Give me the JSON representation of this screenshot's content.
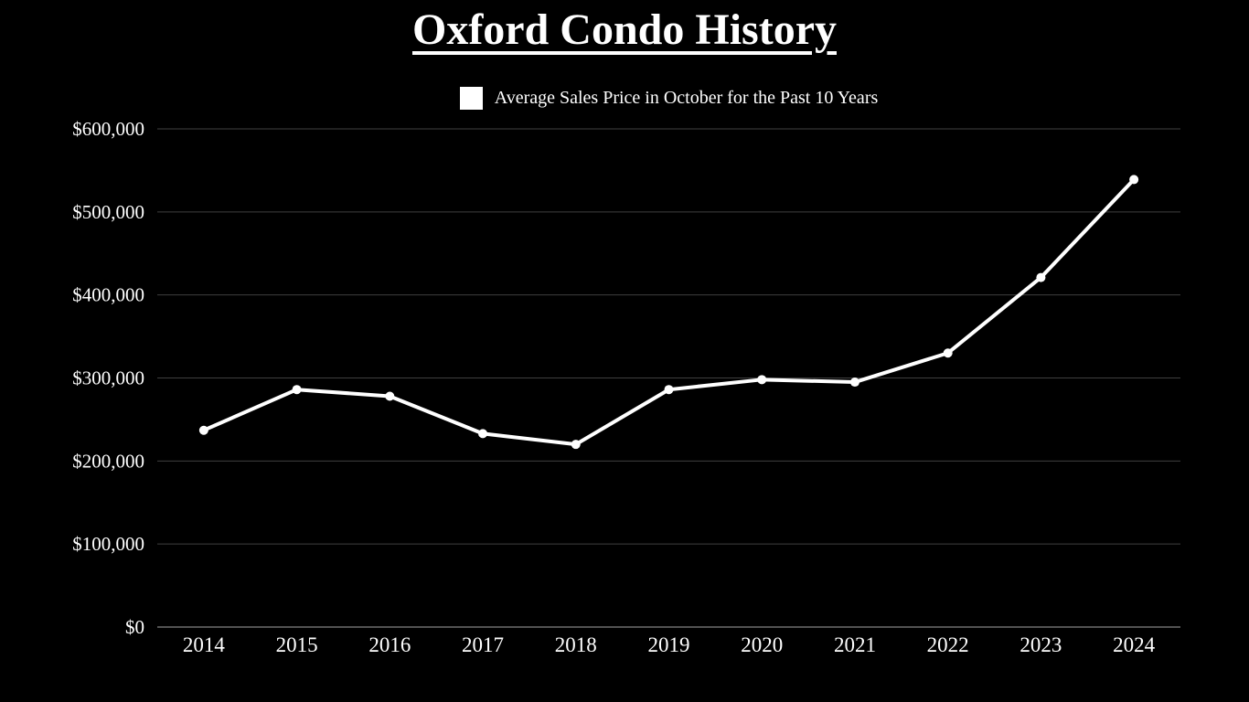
{
  "title": {
    "text": "Oxford Condo History"
  },
  "legend": {
    "label": "Average Sales Price in October for the Past 10 Years"
  },
  "chart_data": {
    "type": "line",
    "title": "Oxford Condo History",
    "x": [
      "2014",
      "2015",
      "2016",
      "2017",
      "2018",
      "2019",
      "2020",
      "2021",
      "2022",
      "2023",
      "2024"
    ],
    "series": [
      {
        "name": "Average Sales Price in October for the Past 10 Years",
        "color": "#ffffff",
        "values": [
          237000,
          286000,
          278000,
          233000,
          220000,
          286000,
          298000,
          295000,
          330000,
          421000,
          539000
        ]
      }
    ],
    "ylim": [
      0,
      600000
    ],
    "y_tick_step": 100000,
    "y_tick_labels": [
      "$0",
      "$100,000",
      "$200,000",
      "$300,000",
      "$400,000",
      "$500,000",
      "$600,000"
    ],
    "grid": true,
    "grid_color": "#3f3f3f",
    "axis_color": "#6e6e6e",
    "background": "#000000",
    "legend_position": "top-center",
    "marker": "circle"
  }
}
